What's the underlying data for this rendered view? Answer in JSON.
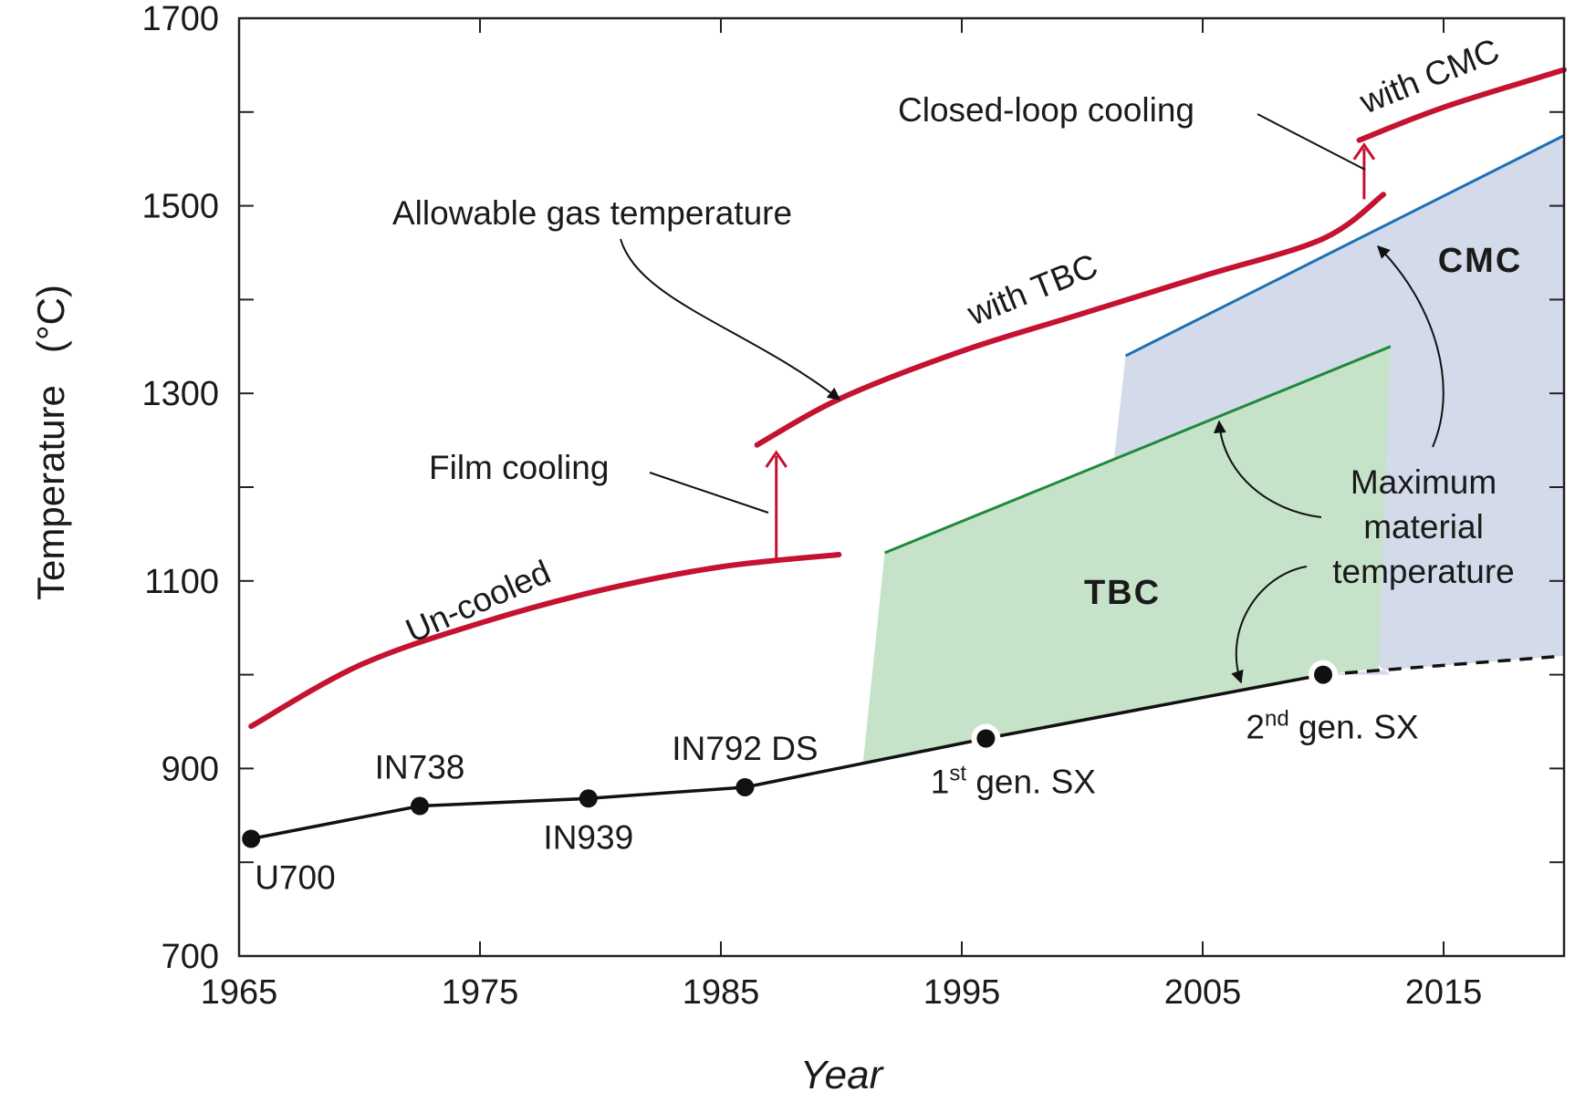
{
  "chart_data": {
    "type": "line",
    "xlabel": "Year",
    "ylabel": "Temperature   (°C)",
    "xlim": [
      1965,
      2020
    ],
    "ylim": [
      700,
      1700
    ],
    "x_ticks": [
      1965,
      1975,
      1985,
      1995,
      2005,
      2015
    ],
    "y_ticks": [
      700,
      900,
      1100,
      1300,
      1500,
      1700
    ],
    "grid": false,
    "series": [
      {
        "segment": "Un-cooled",
        "color": "#c41230",
        "x": [
          1965.5,
          1970,
          1975,
          1980,
          1985,
          1989.9
        ],
        "y": [
          945,
          1010,
          1055,
          1090,
          1115,
          1128
        ]
      },
      {
        "segment": "with TBC",
        "color": "#c41230",
        "x": [
          1986.5,
          1990,
          1995,
          2000,
          2005,
          2010,
          2012.5
        ],
        "y": [
          1245,
          1295,
          1345,
          1385,
          1425,
          1465,
          1512
        ]
      },
      {
        "segment": "with CMC",
        "color": "#c41230",
        "x": [
          2011.5,
          2015,
          2020
        ],
        "y": [
          1570,
          1605,
          1645
        ]
      },
      {
        "segment": "TBC maximum material temperature",
        "color": "#1f8a3a",
        "x": [
          1991.8,
          2012.8
        ],
        "y": [
          1130,
          1350
        ]
      },
      {
        "segment": "CMC maximum material temperature",
        "color": "#1f6fb5",
        "x": [
          2001.8,
          2020
        ],
        "y": [
          1340,
          1575
        ]
      },
      {
        "segment": "Superalloy",
        "color": "#111111",
        "x": [
          1965.5,
          1972.5,
          1979.5,
          1986,
          1996,
          2010
        ],
        "y": [
          825,
          860,
          868,
          880,
          932,
          1000
        ]
      },
      {
        "segment": "Superalloy projection",
        "color": "#111111",
        "dashed": true,
        "x": [
          2010,
          2020
        ],
        "y": [
          1000,
          1020
        ]
      }
    ],
    "points": [
      {
        "label": "U700",
        "x": 1965.5,
        "y": 825,
        "label_pos": "below-right"
      },
      {
        "label": "IN738",
        "x": 1972.5,
        "y": 860,
        "label_pos": "above"
      },
      {
        "label": "IN939",
        "x": 1979.5,
        "y": 868,
        "label_pos": "below"
      },
      {
        "label": "IN792 DS",
        "x": 1986,
        "y": 880,
        "label_pos": "above"
      },
      {
        "label": "1",
        "sup": "st",
        "rest": " gen. SX",
        "x": 1996,
        "y": 932,
        "label_pos": "below",
        "ring": true
      },
      {
        "label": "2",
        "sup": "nd",
        "rest": " gen. SX",
        "x": 2010,
        "y": 1000,
        "label_pos": "below",
        "ring": true
      }
    ],
    "regions": [
      {
        "label": "TBC",
        "color": "#c6e3c9"
      },
      {
        "label": "CMC",
        "color": "#d3daea"
      }
    ],
    "annotations": {
      "allowable": "Allowable gas temperature",
      "film_cooling": "Film cooling",
      "closed_loop": "Closed-loop cooling",
      "uncooled": "Un-cooled",
      "with_tbc": "with TBC",
      "with_cmc": "with CMC",
      "max_material": [
        "Maximum",
        "material",
        "temperature"
      ]
    }
  }
}
